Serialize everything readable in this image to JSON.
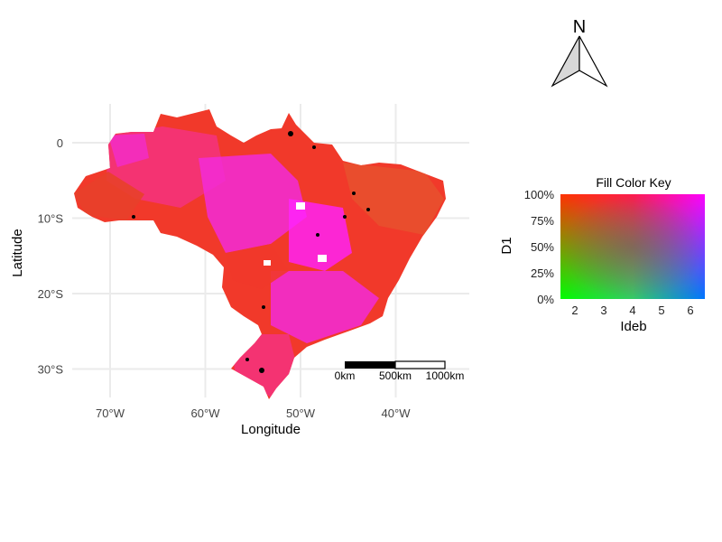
{
  "map": {
    "xlabel": "Longitude",
    "ylabel": "Latitude",
    "x_ticks": [
      "70°W",
      "60°W",
      "50°W",
      "40°W"
    ],
    "y_ticks": [
      "0",
      "10°S",
      "20°S",
      "30°S"
    ],
    "x_tick_values": [
      -70,
      -60,
      -50,
      -40
    ],
    "y_tick_values": [
      0,
      -10,
      -20,
      -30
    ],
    "region": "Brazil",
    "fill_colors": {
      "dominant_red": "#f1392a",
      "magenta": "#f22bd8",
      "pink": "#f4337a",
      "orange_red": "#e8502e",
      "bright_magenta": "#ff22ff",
      "no_data": "#000000"
    },
    "grid": true
  },
  "scale_bar": {
    "labels": [
      "0km",
      "500km",
      "1000km"
    ]
  },
  "north_arrow": {
    "label": "N",
    "icon": "north-arrow-icon"
  },
  "legend": {
    "title": "Fill Color Key",
    "xlabel": "Ideb",
    "ylabel": "D1",
    "x_ticks": [
      "2",
      "3",
      "4",
      "5",
      "6"
    ],
    "y_ticks": [
      "0%",
      "25%",
      "50%",
      "75%",
      "100%"
    ],
    "corner_colors": {
      "low_ideb_high_d1": "#ff3300",
      "high_ideb_high_d1": "#ff00ff",
      "low_ideb_low_d1": "#00ff00",
      "high_ideb_low_d1": "#0066ff",
      "mid_high_ideb_mid_d1": "#8a33ff"
    }
  }
}
